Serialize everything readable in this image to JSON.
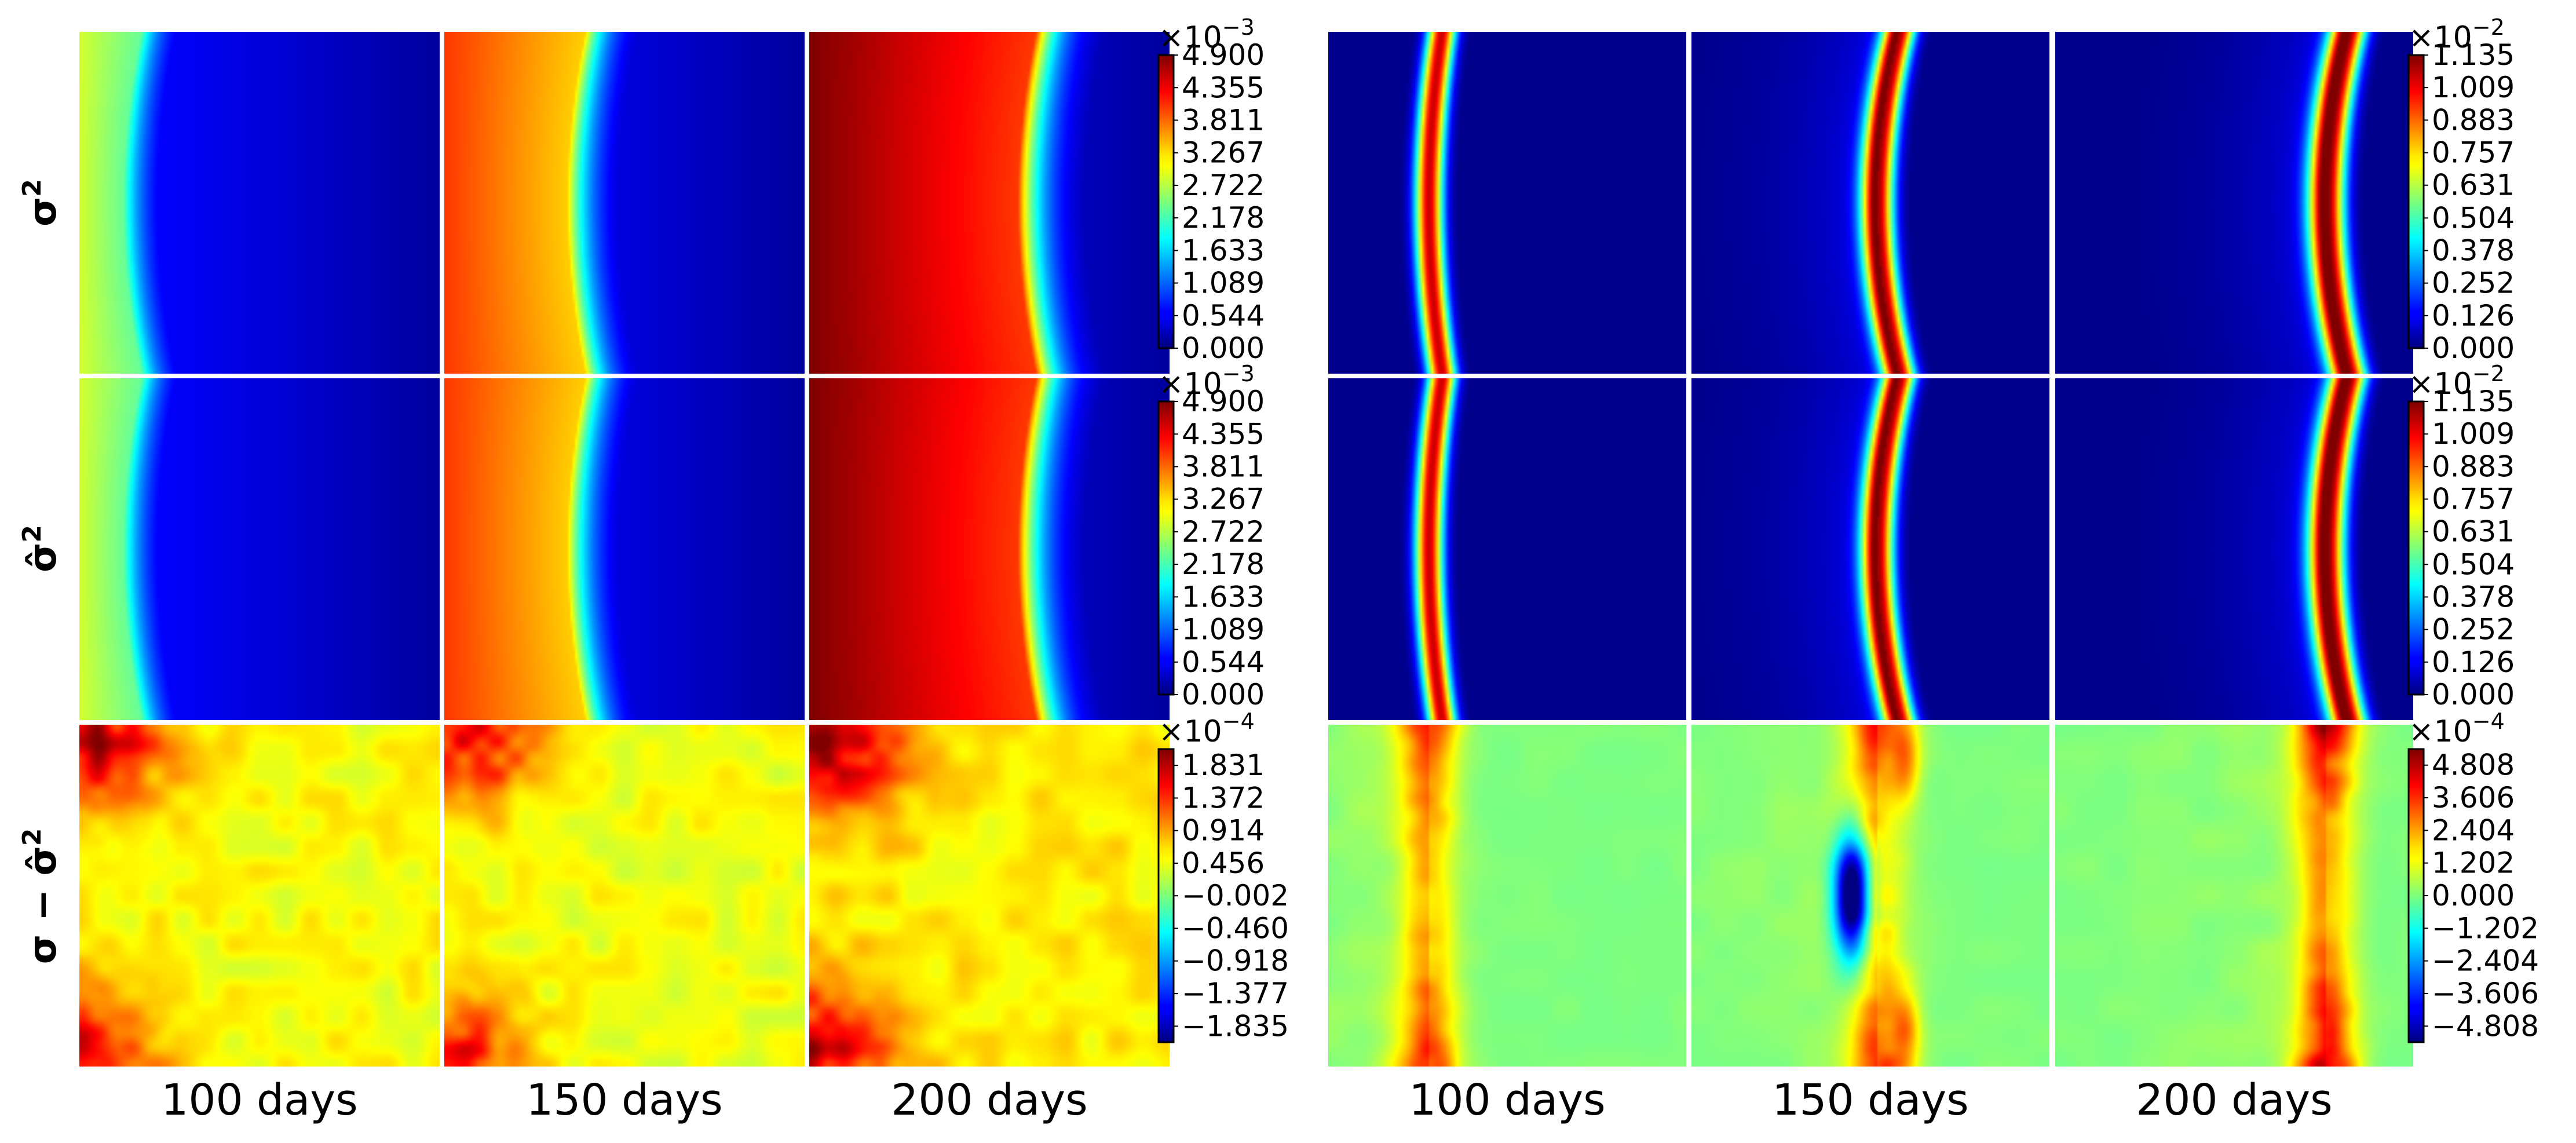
{
  "chart_data": {
    "type": "heatmap",
    "colormap": "jet",
    "layout": "3 rows x 6 panels (two groups of three time steps)",
    "row_labels": [
      {
        "base": "σ",
        "hat": false,
        "sup": "2"
      },
      {
        "base": "σ̂",
        "hat": true,
        "sup": "2"
      },
      {
        "base": "σ − σ̂",
        "hat": true,
        "sup": "2",
        "difference": true
      }
    ],
    "column_labels": [
      "100 days",
      "150 days",
      "200 days",
      "100 days",
      "150 days",
      "200 days"
    ],
    "groups": [
      {
        "rows": [
          {
            "colorbar": {
              "multiplier": "×10",
              "exponent": "−3",
              "ticks": [
                "4.900",
                "4.355",
                "3.811",
                "3.267",
                "2.722",
                "2.178",
                "1.633",
                "1.089",
                "0.544",
                "0.000"
              ],
              "vmin": 0.0,
              "vmax": 4.9
            },
            "fields": [
              {
                "time": "100 days",
                "front": 0.12,
                "amplitude": 0.58,
                "max": 2.84
              },
              {
                "time": "150 days",
                "front": 0.34,
                "amplitude": 0.82,
                "max": 4.02
              },
              {
                "time": "200 days",
                "front": 0.58,
                "amplitude": 1.0,
                "max": 4.9
              }
            ]
          },
          {
            "colorbar": {
              "multiplier": "×10",
              "exponent": "−3",
              "ticks": [
                "4.900",
                "4.355",
                "3.811",
                "3.267",
                "2.722",
                "2.178",
                "1.633",
                "1.089",
                "0.544",
                "0.000"
              ],
              "vmin": 0.0,
              "vmax": 4.9
            },
            "fields": [
              {
                "time": "100 days",
                "front": 0.12,
                "amplitude": 0.58,
                "max": 2.84
              },
              {
                "time": "150 days",
                "front": 0.34,
                "amplitude": 0.82,
                "max": 4.02
              },
              {
                "time": "200 days",
                "front": 0.58,
                "amplitude": 1.0,
                "max": 4.9
              }
            ]
          },
          {
            "colorbar": {
              "multiplier": "×10",
              "exponent": "−4",
              "ticks": [
                "1.831",
                "1.372",
                "0.914",
                "0.456",
                "−0.002",
                "−0.460",
                "−0.918",
                "−1.377",
                "−1.835"
              ],
              "vmin": -2.06,
              "vmax": 2.06
            },
            "fields": [
              {
                "time": "100 days",
                "mean": 0.5,
                "corner": 1.5
              },
              {
                "time": "150 days",
                "mean": 0.46,
                "corner": 1.4
              },
              {
                "time": "200 days",
                "mean": 0.58,
                "corner": 1.7
              }
            ]
          }
        ]
      },
      {
        "rows": [
          {
            "colorbar": {
              "multiplier": "×10",
              "exponent": "−2",
              "ticks": [
                "1.135",
                "1.009",
                "0.883",
                "0.757",
                "0.631",
                "0.504",
                "0.378",
                "0.252",
                "0.126",
                "0.000"
              ],
              "vmin": 0.0,
              "vmax": 1.135
            },
            "fields": [
              {
                "time": "100 days",
                "peak": 0.28,
                "width": 0.04,
                "max": 1.05
              },
              {
                "time": "150 days",
                "peak": 0.52,
                "width": 0.045,
                "max": 1.1
              },
              {
                "time": "200 days",
                "peak": 0.76,
                "width": 0.05,
                "max": 1.135
              }
            ]
          },
          {
            "colorbar": {
              "multiplier": "×10",
              "exponent": "−2",
              "ticks": [
                "1.135",
                "1.009",
                "0.883",
                "0.757",
                "0.631",
                "0.504",
                "0.378",
                "0.252",
                "0.126",
                "0.000"
              ],
              "vmin": 0.0,
              "vmax": 1.135
            },
            "fields": [
              {
                "time": "100 days",
                "peak": 0.28,
                "width": 0.04,
                "max": 1.05
              },
              {
                "time": "150 days",
                "peak": 0.52,
                "width": 0.045,
                "max": 1.1
              },
              {
                "time": "200 days",
                "peak": 0.76,
                "width": 0.05,
                "max": 1.135
              }
            ]
          },
          {
            "colorbar": {
              "multiplier": "×10",
              "exponent": "−4",
              "ticks": [
                "4.808",
                "3.606",
                "2.404",
                "1.202",
                "0.000",
                "−1.202",
                "−2.404",
                "−3.606",
                "−4.808"
              ],
              "vmin": -5.4,
              "vmax": 5.4
            },
            "fields": [
              {
                "time": "100 days",
                "peak": 0.28,
                "amp": 2.8,
                "negative_core": false
              },
              {
                "time": "150 days",
                "peak": 0.52,
                "amp": 2.6,
                "negative_core": true
              },
              {
                "time": "200 days",
                "peak": 0.76,
                "amp": 3.4,
                "negative_core": false
              }
            ]
          }
        ]
      }
    ]
  }
}
